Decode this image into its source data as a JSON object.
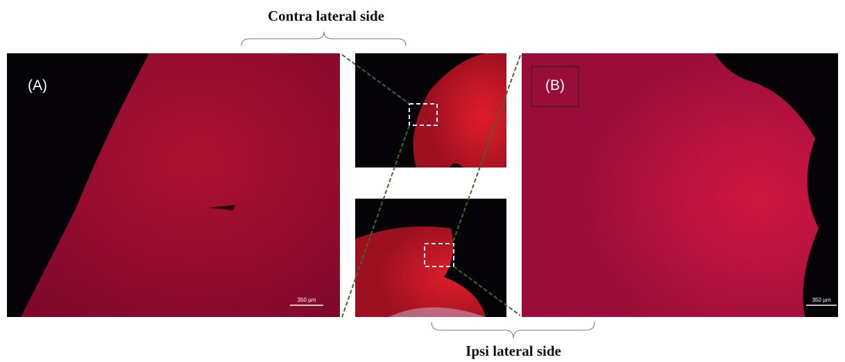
{
  "top_label": "Contra lateral side",
  "bottom_label": "Ipsi lateral side",
  "panels": [
    {
      "label": "(A)",
      "scale_bar": "350 µm"
    },
    {
      "label": "(B)",
      "scale_bar": "350 µm"
    }
  ]
}
